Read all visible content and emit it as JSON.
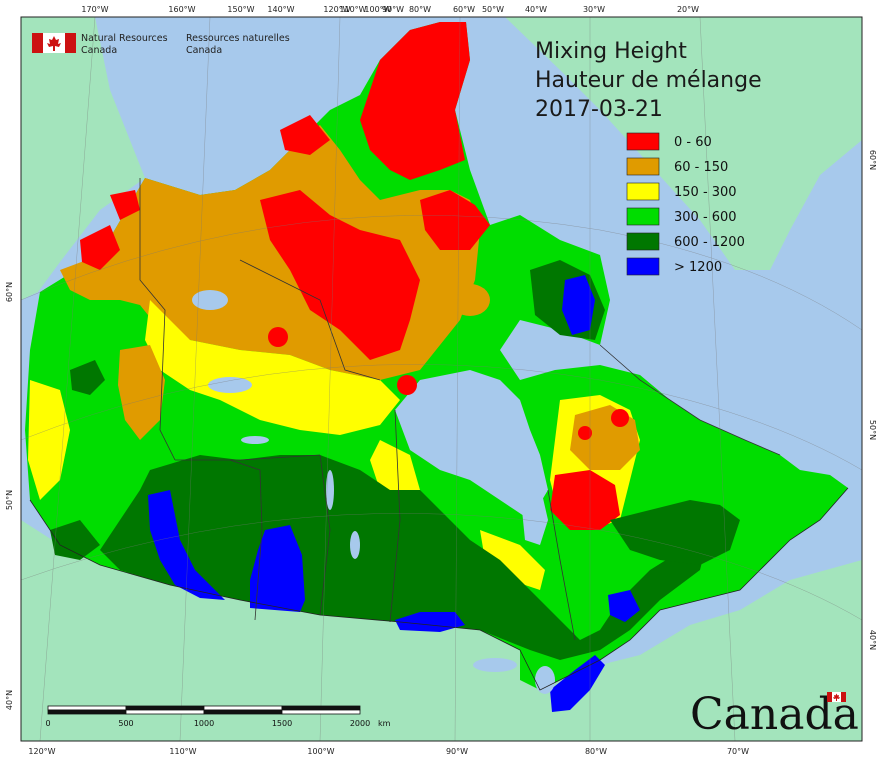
{
  "title": {
    "line1": "Mixing Height",
    "line2": "Hauteur de mélange",
    "date": "2017-03-21"
  },
  "agency": {
    "en_line1": "Natural Resources",
    "en_line2": "Canada",
    "fr_line1": "Ressources naturelles",
    "fr_line2": "Canada"
  },
  "legend": [
    {
      "label": "0 - 60",
      "color": "#ff0000"
    },
    {
      "label": "60 - 150",
      "color": "#e09b00"
    },
    {
      "label": "150 - 300",
      "color": "#ffff00"
    },
    {
      "label": "300 - 600",
      "color": "#00dd00"
    },
    {
      "label": "600 - 1200",
      "color": "#007700"
    },
    {
      "label": "> 1200",
      "color": "#0000ff"
    }
  ],
  "graticule": {
    "top": [
      "170°W",
      "160°W",
      "150°W",
      "140°W",
      "120°W",
      "110°W",
      "100°W",
      "90°W",
      "80°W",
      "60°W",
      "50°W",
      "40°W",
      "30°W",
      "20°W"
    ],
    "bottom": [
      "120°W",
      "110°W",
      "100°W",
      "90°W",
      "80°W",
      "70°W"
    ],
    "left": [
      "60°N",
      "50°N",
      "40°N"
    ],
    "right": [
      "60°N",
      "50°N",
      "40°N"
    ]
  },
  "scalebar": {
    "ticks": [
      "0",
      "500",
      "1000",
      "1500",
      "2000"
    ],
    "unit": "km"
  },
  "wordmark": "Canada",
  "colors": {
    "ocean": "#a7c9ec",
    "land_outside": "#a3e4bc",
    "water_bodies": "#a7c9ec"
  }
}
